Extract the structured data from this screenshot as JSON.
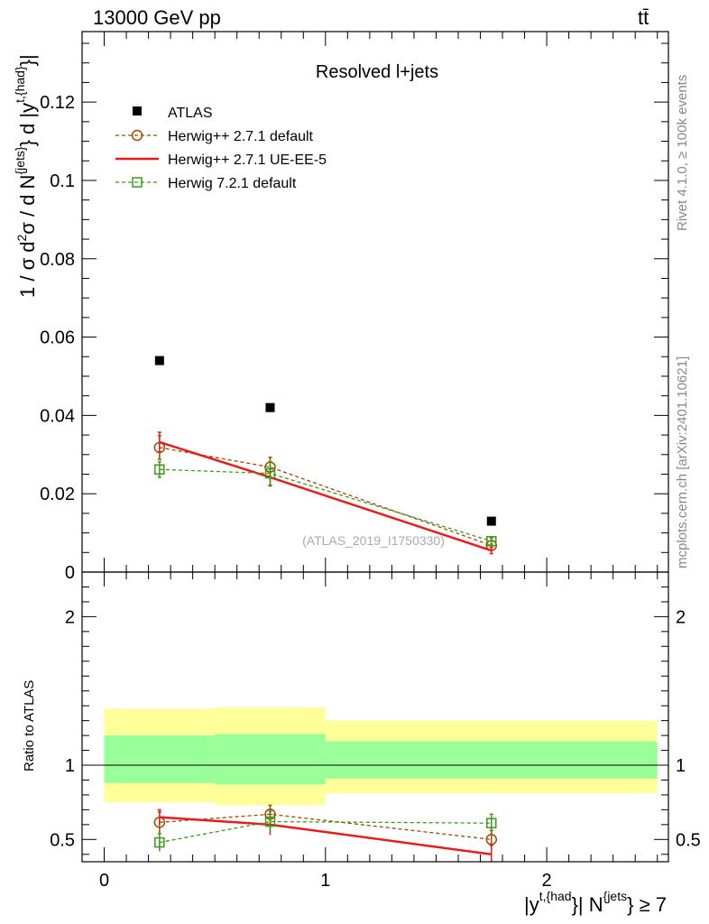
{
  "header": {
    "energy_label": "13000 GeV pp",
    "process_label": "tt̄"
  },
  "side_labels": {
    "rivet": "Rivet 4.1.0, ≥ 100k events",
    "mcplots": "mcplots.cern.ch [arXiv:2401.10621]"
  },
  "chart_data": [
    {
      "type": "scatter",
      "panel": "main",
      "title": "Resolved l+jets",
      "watermark": "(ATLAS_2019_I1750330)",
      "ylabel_parts": {
        "a": "1 / σ d",
        "b": "2",
        "c": "σ / d N",
        "d": "{jets}",
        "e": "} d |y",
        "f": "t,{had}",
        "g": "}|"
      },
      "ylim": [
        0,
        0.138
      ],
      "xlim": [
        -0.1,
        2.55
      ],
      "yticks": [
        0,
        0.02,
        0.04,
        0.06,
        0.08,
        0.1,
        0.12
      ],
      "ytick_labels": [
        "0",
        "0.02",
        "0.04",
        "0.06",
        "0.08",
        "0.1",
        "0.12"
      ],
      "legend_position": "top-left",
      "series": [
        {
          "name": "ATLAS",
          "key": "atlas",
          "color": "#000000",
          "marker": "square-filled",
          "x": [
            0.25,
            0.75,
            1.75
          ],
          "y": [
            0.054,
            0.042,
            0.013
          ]
        },
        {
          "name": "Herwig++ 2.7.1 default",
          "key": "herwig_default",
          "color": "#9C4A00",
          "marker": "circle-open",
          "line": "dashed",
          "x": [
            0.25,
            0.75,
            1.75
          ],
          "y": [
            0.0318,
            0.0268,
            0.0068
          ],
          "yerr": [
            0.003,
            0.0025,
            0.0012
          ]
        },
        {
          "name": "Herwig++ 2.7.1 UE-EE-5",
          "key": "herwig_ueee5",
          "color": "#E81C1C",
          "marker": "none",
          "line": "solid",
          "x": [
            0.25,
            0.75,
            1.75
          ],
          "y": [
            0.0332,
            0.0242,
            0.0055
          ],
          "yerr": [
            0.0025,
            0.0022,
            0.0008
          ]
        },
        {
          "name": "Herwig 7.2.1 default",
          "key": "herwig7",
          "color": "#3A9A1A",
          "marker": "square-open",
          "line": "dashed",
          "x": [
            0.25,
            0.75,
            1.75
          ],
          "y": [
            0.0262,
            0.0252,
            0.0079
          ],
          "yerr": [
            0.002,
            0.003,
            0.0008
          ]
        }
      ]
    },
    {
      "type": "line",
      "panel": "ratio",
      "ylabel": "Ratio to ATLAS",
      "ylim": [
        0.35,
        2.3
      ],
      "xlim": [
        -0.1,
        2.55
      ],
      "yticks": [
        0.5,
        1,
        2
      ],
      "ytick_labels": [
        "0.5",
        "1",
        "2"
      ],
      "xticks": [
        0,
        1,
        2
      ],
      "xtick_labels": [
        "0",
        "1",
        "2"
      ],
      "xlabel_parts": {
        "a": "|y",
        "b": "t,{had",
        "c": "}| N",
        "d": "{jets",
        "e": "} ≥ 7"
      },
      "bands": [
        {
          "x0": 0.0,
          "x1": 0.5,
          "inner": [
            0.88,
            1.2
          ],
          "outer": [
            0.75,
            1.38
          ]
        },
        {
          "x0": 0.5,
          "x1": 1.0,
          "inner": [
            0.87,
            1.21
          ],
          "outer": [
            0.73,
            1.39
          ]
        },
        {
          "x0": 1.0,
          "x1": 2.5,
          "inner": [
            0.91,
            1.16
          ],
          "outer": [
            0.81,
            1.3
          ]
        }
      ],
      "band_colors": {
        "inner": "#99FF99",
        "outer": "#FFFF99"
      },
      "series": [
        {
          "name": "Herwig++ 2.7.1 default",
          "key": "herwig_default",
          "color": "#9C4A00",
          "x": [
            0.25,
            0.75,
            1.75
          ],
          "y": [
            0.615,
            0.67,
            0.5
          ],
          "yerr": [
            0.07,
            0.06,
            0.06
          ]
        },
        {
          "name": "Herwig++ 2.7.1 UE-EE-5",
          "key": "herwig_ueee5",
          "color": "#E81C1C",
          "x": [
            0.25,
            0.75,
            1.75
          ],
          "y": [
            0.65,
            0.6,
            0.4
          ],
          "yerr": [
            0.05,
            0.07,
            0.06
          ]
        },
        {
          "name": "Herwig 7.2.1 default",
          "key": "herwig7",
          "color": "#3A9A1A",
          "x": [
            0.25,
            0.75,
            1.75
          ],
          "y": [
            0.48,
            0.62,
            0.61
          ],
          "yerr": [
            0.06,
            0.07,
            0.06
          ]
        }
      ]
    }
  ]
}
